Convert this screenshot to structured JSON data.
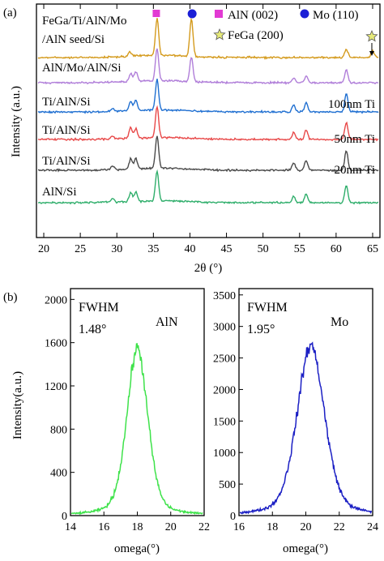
{
  "chart_data": [
    {
      "panel": "(a)",
      "type": "line",
      "xlabel": "2θ (°)",
      "ylabel": "Intensity (a.u.)",
      "xlim": [
        19,
        66
      ],
      "x_ticks": [
        20,
        25,
        30,
        35,
        40,
        45,
        50,
        55,
        60,
        65
      ],
      "grid": false,
      "legend": {
        "placement": "top-right",
        "items": [
          {
            "label": "AlN (002)",
            "marker": "square",
            "color": "#e23ad3",
            "x": 35.4
          },
          {
            "label": "Mo (110)",
            "marker": "circle",
            "color": "#1b1fd6",
            "x": 40.3
          },
          {
            "label": "FeGa (200)",
            "marker": "star",
            "color": "#e6ea7a",
            "x": 65.0
          }
        ]
      },
      "series": [
        {
          "name": "FeGa/Ti/AlN/Mo",
          "name_line2": "/AlN seed/Si",
          "color": "#d49a1c",
          "peaks": [
            {
              "x": 31.8,
              "h": 0.12
            },
            {
              "x": 35.5,
              "h": 1.0
            },
            {
              "x": 40.2,
              "h": 1.0
            },
            {
              "x": 61.4,
              "h": 0.22
            },
            {
              "x": 65.0,
              "h": 0.18
            }
          ]
        },
        {
          "name": "AlN/Mo/AlN/Si",
          "color": "#b07ed9",
          "peaks": [
            {
              "x": 31.9,
              "h": 0.25
            },
            {
              "x": 32.6,
              "h": 0.3
            },
            {
              "x": 35.5,
              "h": 1.0
            },
            {
              "x": 40.2,
              "h": 0.75
            },
            {
              "x": 54.2,
              "h": 0.15
            },
            {
              "x": 55.9,
              "h": 0.2
            },
            {
              "x": 61.4,
              "h": 0.4
            }
          ]
        },
        {
          "name": "Ti/AlN/Si",
          "label": "100nm Ti",
          "color": "#1f6fd1",
          "peaks": [
            {
              "x": 29.4,
              "h": 0.1
            },
            {
              "x": 31.9,
              "h": 0.3
            },
            {
              "x": 32.6,
              "h": 0.35
            },
            {
              "x": 35.5,
              "h": 1.0
            },
            {
              "x": 54.2,
              "h": 0.22
            },
            {
              "x": 55.9,
              "h": 0.3
            },
            {
              "x": 61.4,
              "h": 0.6
            }
          ]
        },
        {
          "name": "Ti/AlN/Si",
          "label": "50nm Ti",
          "color": "#e84848",
          "peaks": [
            {
              "x": 29.4,
              "h": 0.1
            },
            {
              "x": 31.9,
              "h": 0.35
            },
            {
              "x": 32.6,
              "h": 0.3
            },
            {
              "x": 35.5,
              "h": 1.0
            },
            {
              "x": 54.2,
              "h": 0.22
            },
            {
              "x": 55.9,
              "h": 0.3
            },
            {
              "x": 61.4,
              "h": 0.55
            }
          ]
        },
        {
          "name": "Ti/AlN/Si",
          "label": "20nm Ti",
          "color": "#4a4a4a",
          "peaks": [
            {
              "x": 29.4,
              "h": 0.12
            },
            {
              "x": 31.9,
              "h": 0.32
            },
            {
              "x": 32.6,
              "h": 0.32
            },
            {
              "x": 35.5,
              "h": 1.0
            },
            {
              "x": 54.2,
              "h": 0.22
            },
            {
              "x": 55.9,
              "h": 0.3
            },
            {
              "x": 61.4,
              "h": 0.6
            }
          ]
        },
        {
          "name": "AlN/Si",
          "color": "#2fae6b",
          "peaks": [
            {
              "x": 29.4,
              "h": 0.12
            },
            {
              "x": 31.9,
              "h": 0.3
            },
            {
              "x": 32.6,
              "h": 0.33
            },
            {
              "x": 35.5,
              "h": 1.0
            },
            {
              "x": 54.2,
              "h": 0.22
            },
            {
              "x": 55.9,
              "h": 0.3
            },
            {
              "x": 61.4,
              "h": 0.6
            }
          ]
        }
      ]
    },
    {
      "panel": "(b)",
      "type": "line",
      "title": "AlN",
      "annotation": [
        "FWHM",
        "1.48°"
      ],
      "xlabel": "omega(°)",
      "ylabel": "Intensity(a.u.)",
      "xlim": [
        14,
        22
      ],
      "ylim": [
        0,
        2100
      ],
      "x_ticks": [
        14,
        16,
        18,
        20,
        22
      ],
      "y_ticks": [
        0,
        400,
        800,
        1200,
        1600,
        2000
      ],
      "color": "#3ee24a",
      "series": [
        {
          "center": 18.0,
          "fwhm": 1.48,
          "peak": 1550
        }
      ]
    },
    {
      "panel": "(b)",
      "type": "line",
      "title": "Mo",
      "annotation": [
        "FWHM",
        "1.95°"
      ],
      "xlabel": "omega(°)",
      "ylabel": "",
      "xlim": [
        16,
        24
      ],
      "ylim": [
        0,
        3600
      ],
      "x_ticks": [
        16,
        18,
        20,
        22,
        24
      ],
      "y_ticks": [
        0,
        500,
        1000,
        1500,
        2000,
        2500,
        3000,
        3500
      ],
      "color": "#1b1fc4",
      "series": [
        {
          "center": 20.3,
          "fwhm": 1.95,
          "peak": 2700
        }
      ]
    }
  ]
}
